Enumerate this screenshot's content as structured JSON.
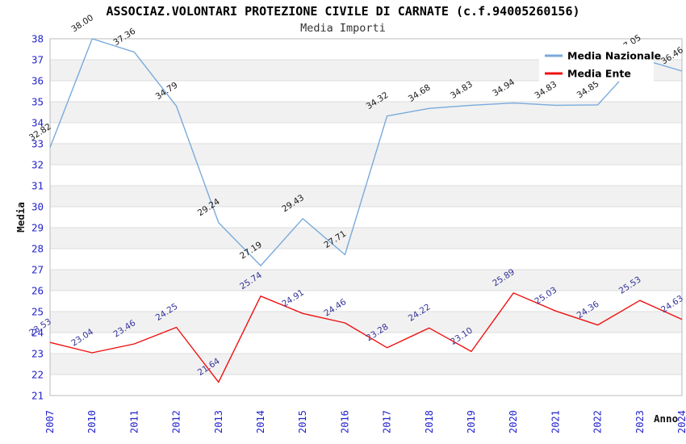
{
  "chart_data": {
    "type": "line",
    "title": "ASSOCIAZ.VOLONTARI PROTEZIONE CIVILE DI CARNATE (c.f.94005260156)",
    "subtitle": "Media Importi",
    "xlabel": "Anno",
    "ylabel": "Media",
    "ylim": [
      21,
      38
    ],
    "y_ticks": [
      21,
      22,
      23,
      24,
      25,
      26,
      27,
      28,
      29,
      30,
      31,
      32,
      33,
      34,
      35,
      36,
      37,
      38
    ],
    "categories": [
      "2007",
      "2010",
      "2011",
      "2012",
      "2013",
      "2014",
      "2015",
      "2016",
      "2017",
      "2018",
      "2019",
      "2020",
      "2021",
      "2022",
      "2023",
      "2024"
    ],
    "series": [
      {
        "name": "Media Nazionale",
        "color": "#79aadc",
        "label_color": "#1a1a1a",
        "values": [
          32.82,
          38.0,
          37.36,
          34.79,
          29.24,
          27.19,
          29.43,
          27.71,
          34.32,
          34.68,
          34.83,
          34.94,
          34.83,
          34.85,
          37.05,
          36.46
        ]
      },
      {
        "name": "Media Ente",
        "color": "#ee1111",
        "label_color": "#333399",
        "values": [
          23.53,
          23.04,
          23.46,
          24.25,
          21.64,
          25.74,
          24.91,
          24.46,
          23.28,
          24.22,
          23.1,
          25.89,
          25.03,
          24.36,
          25.53,
          24.63
        ]
      }
    ],
    "legend_position": "top-right",
    "grid": "horizontal-bands",
    "colors": {
      "band": "#f1f1f1",
      "gridline": "#dddddd",
      "plot_border": "#bbbbbb",
      "tick_label": "#2222cc",
      "axis_title": "#111111",
      "legend_bg": "#ffffff"
    }
  }
}
